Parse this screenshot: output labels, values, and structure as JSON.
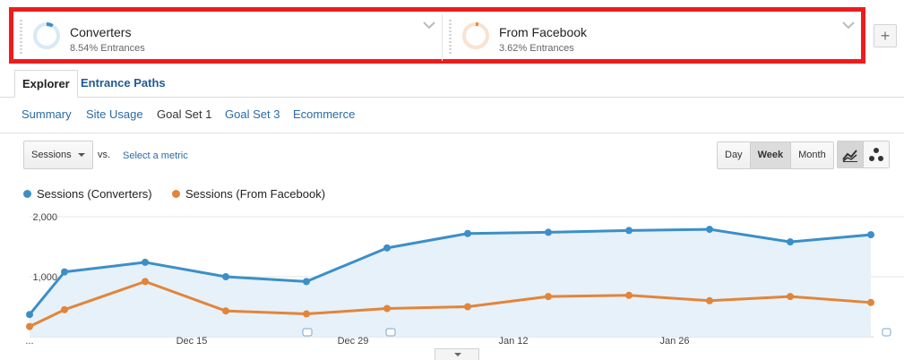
{
  "segments": [
    {
      "name": "Converters",
      "subtitle": "8.54% Entrances",
      "pct": 0.0854,
      "color": "#3b8fc8",
      "track": "#d7e9f5"
    },
    {
      "name": "From Facebook",
      "subtitle": "3.62% Entrances",
      "pct": 0.0362,
      "color": "#e8893a",
      "track": "#f9e2cf"
    }
  ],
  "add_segment_label": "+",
  "tabs": [
    {
      "label": "Explorer",
      "active": true
    },
    {
      "label": "Entrance Paths",
      "active": false
    }
  ],
  "subnav": [
    {
      "label": "Summary",
      "active": false
    },
    {
      "label": "Site Usage",
      "active": false
    },
    {
      "label": "Goal Set 1",
      "active": true
    },
    {
      "label": "Goal Set 3",
      "active": false
    },
    {
      "label": "Ecommerce",
      "active": false
    }
  ],
  "controls": {
    "metric": "Sessions",
    "vs_label": "vs.",
    "select_metric": "Select a metric",
    "periods": [
      "Day",
      "Week",
      "Month"
    ],
    "active_period": "Week"
  },
  "chart_data": {
    "type": "line",
    "title": "",
    "ylim": [
      0,
      2000
    ],
    "y_ticks": [
      "1,000",
      "2,000"
    ],
    "x_tick_labels": [
      "...",
      "Dec 15",
      "Dec 29",
      "Jan 12",
      "Jan 26"
    ],
    "x_points": 12,
    "series": [
      {
        "name": "Sessions (Converters)",
        "color": "#3b8fc8",
        "values": [
          370,
          1080,
          1240,
          1000,
          920,
          1480,
          1720,
          1740,
          1770,
          1790,
          1580,
          1700
        ]
      },
      {
        "name": "Sessions (From Facebook)",
        "color": "#e2853a",
        "values": [
          170,
          450,
          920,
          430,
          380,
          470,
          500,
          670,
          690,
          600,
          670,
          570
        ]
      }
    ]
  }
}
